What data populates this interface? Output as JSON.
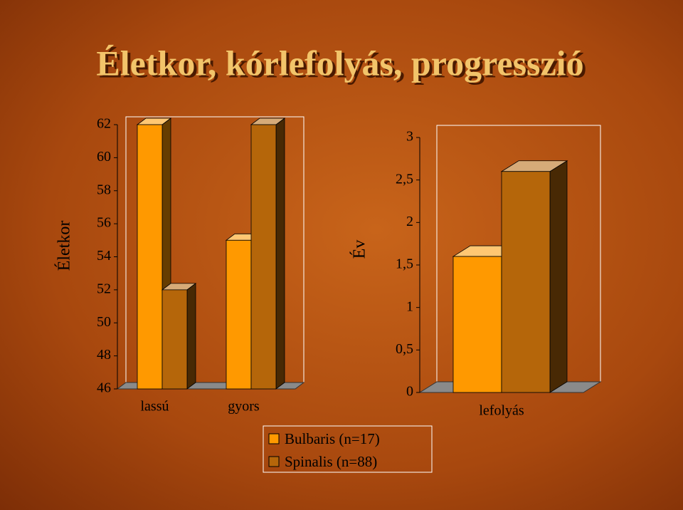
{
  "title": "Életkor, kórlefolyás, progresszió",
  "chart_data": [
    {
      "type": "bar",
      "ylabel": "Életkor",
      "categories": [
        "lassú",
        "gyors"
      ],
      "series": [
        {
          "name": "Bulbaris (n=17)",
          "color": "#ff9900",
          "values": [
            62,
            55
          ]
        },
        {
          "name": "Spinalis (n=88)",
          "color": "#b5660a",
          "values": [
            52,
            62
          ]
        }
      ],
      "ylim": [
        46,
        62
      ],
      "yticks": [
        46,
        48,
        50,
        52,
        54,
        56,
        58,
        60,
        62
      ]
    },
    {
      "type": "bar",
      "ylabel": "Év",
      "categories": [
        "lefolyás"
      ],
      "series": [
        {
          "color": "#ff9900",
          "values": [
            1.6
          ]
        },
        {
          "color": "#b5660a",
          "values": [
            2.6
          ]
        }
      ],
      "ylim": [
        0,
        3
      ],
      "yticks": [
        0,
        {
          "value": 0.5,
          "label": "0,5"
        },
        1,
        {
          "value": 1.5,
          "label": "1,5"
        },
        2,
        {
          "value": 2.5,
          "label": "2,5"
        },
        3
      ]
    }
  ]
}
